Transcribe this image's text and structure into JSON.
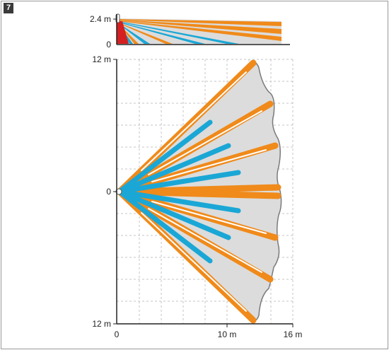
{
  "figure_number": "7",
  "side_view": {
    "y_ticks": [
      "2.4 m",
      "0"
    ]
  },
  "top_view": {
    "y_ticks": [
      "12 m",
      "0",
      "12 m"
    ],
    "x_ticks": [
      "0",
      "10 m",
      "16 m"
    ]
  },
  "colors": {
    "far_beam": "#f08a1a",
    "near_beam": "#1aa7d6",
    "zone_fill": "#dcdcdc",
    "zone_outline": "#7a7a7a",
    "grid": "#c6c6c6",
    "axis": "#222222",
    "sensor_red": "#d42020",
    "frame": "#9a9a9a"
  }
}
